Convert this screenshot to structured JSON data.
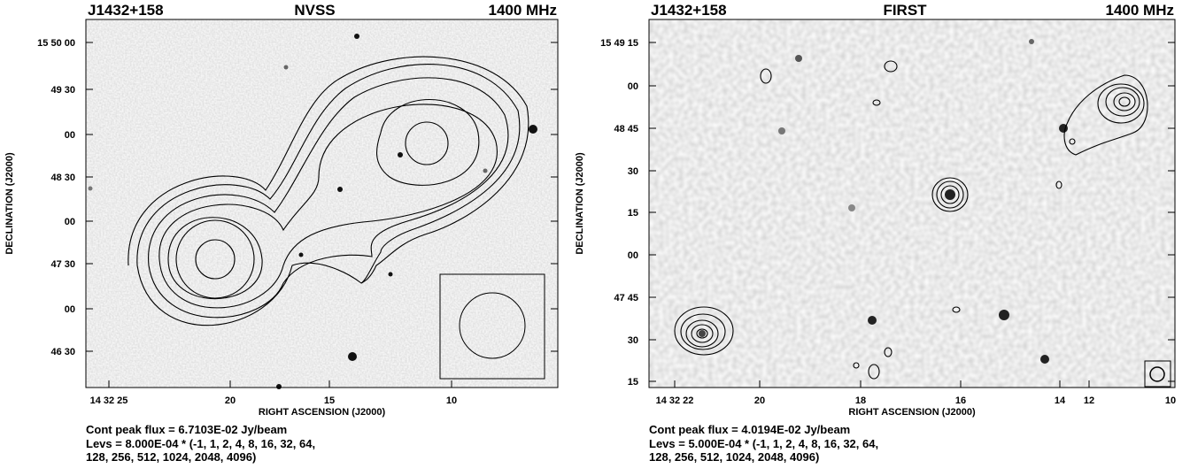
{
  "panels": [
    {
      "source": "J1432+158",
      "survey": "NVSS",
      "frequency": "1400 MHz",
      "y_label": "DECLINATION (J2000)",
      "x_label": "RIGHT ASCENSION (J2000)",
      "y_ticks": [
        "15 50 00",
        "49 30",
        "00",
        "48 30",
        "00",
        "47 30",
        "00",
        "46 30"
      ],
      "x_ticks": [
        "14 32 25",
        "20",
        "15",
        "10"
      ],
      "peak_flux": "Cont peak flux =  6.7103E-02 Jy/beam",
      "levels": [
        "Levs = 8.000E-04 * (-1, 1, 2, 4, 8, 16, 32, 64,",
        "128, 256, 512, 1024, 2048, 4096)"
      ]
    },
    {
      "source": "J1432+158",
      "survey": "FIRST",
      "frequency": "1400 MHz",
      "y_label": "DECLINATION (J2000)",
      "x_label": "RIGHT ASCENSION (J2000)",
      "y_ticks": [
        "15 49 15",
        "00",
        "48 45",
        "30",
        "15",
        "00",
        "47 45",
        "30",
        "15"
      ],
      "x_ticks": [
        "14 32 22",
        "20",
        "18",
        "16",
        "14",
        "12",
        "10"
      ],
      "peak_flux": "Cont peak flux =  4.0194E-02 Jy/beam",
      "levels": [
        "Levs = 5.000E-04 * (-1, 1, 2, 4, 8, 16, 32, 64,",
        "128, 256, 512, 1024, 2048, 4096)"
      ]
    }
  ]
}
